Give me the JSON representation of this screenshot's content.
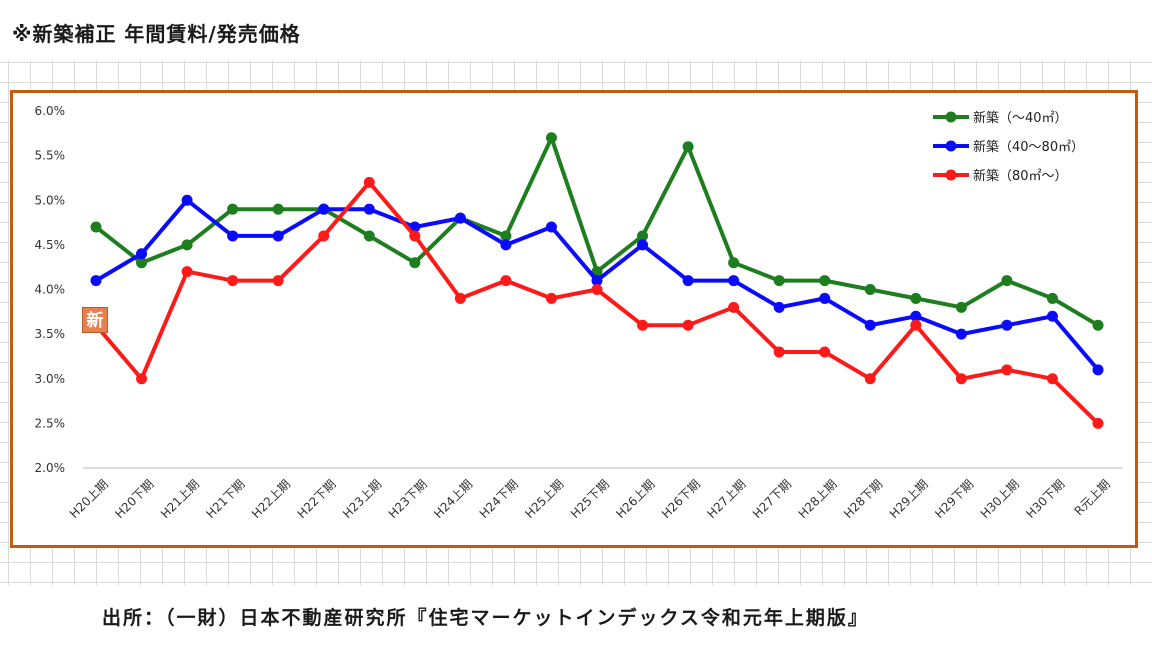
{
  "page": {
    "title": "※新築補正 年間賃料/発売価格",
    "source": "出所：（一財）日本不動産研究所『住宅マーケットインデックス令和元年上期版』"
  },
  "badge": {
    "label": "新"
  },
  "chart_data": {
    "type": "line",
    "title": "",
    "xlabel": "",
    "ylabel": "",
    "ylim": [
      0.02,
      0.06
    ],
    "y_ticks": [
      "6.0%",
      "5.5%",
      "5.0%",
      "4.5%",
      "4.0%",
      "3.5%",
      "3.0%",
      "2.5%",
      "2.0%"
    ],
    "y_tick_values": [
      0.06,
      0.055,
      0.05,
      0.045,
      0.04,
      0.035,
      0.03,
      0.025,
      0.02
    ],
    "grid": false,
    "legend_position": "top-right",
    "categories": [
      "H20上期",
      "H20下期",
      "H21上期",
      "H21下期",
      "H22上期",
      "H22下期",
      "H23上期",
      "H23下期",
      "H24上期",
      "H24下期",
      "H25上期",
      "H25下期",
      "H26上期",
      "H26下期",
      "H27上期",
      "H27下期",
      "H28上期",
      "H28下期",
      "H29上期",
      "H29下期",
      "H30上期",
      "H30下期",
      "R元上期"
    ],
    "series": [
      {
        "name": "新築（～40㎡）",
        "color": "#1e7d1e",
        "values": [
          0.047,
          0.043,
          0.045,
          0.049,
          0.049,
          0.049,
          0.046,
          0.043,
          0.048,
          0.046,
          0.057,
          0.042,
          0.046,
          0.056,
          0.043,
          0.041,
          0.041,
          0.04,
          0.039,
          0.038,
          0.041,
          0.039,
          0.036
        ]
      },
      {
        "name": "新築（40～80㎡）",
        "color": "#0a0aff",
        "values": [
          0.041,
          0.044,
          0.05,
          0.046,
          0.046,
          0.049,
          0.049,
          0.047,
          0.048,
          0.045,
          0.047,
          0.041,
          0.045,
          0.041,
          0.041,
          0.038,
          0.039,
          0.036,
          0.037,
          0.035,
          0.036,
          0.037,
          0.031
        ]
      },
      {
        "name": "新築（80㎡～）",
        "color": "#ff1a1a",
        "values": [
          0.036,
          0.03,
          0.042,
          0.041,
          0.041,
          0.046,
          0.052,
          0.046,
          0.039,
          0.041,
          0.039,
          0.04,
          0.036,
          0.036,
          0.038,
          0.033,
          0.033,
          0.03,
          0.036,
          0.03,
          0.031,
          0.03,
          0.025
        ]
      }
    ]
  }
}
